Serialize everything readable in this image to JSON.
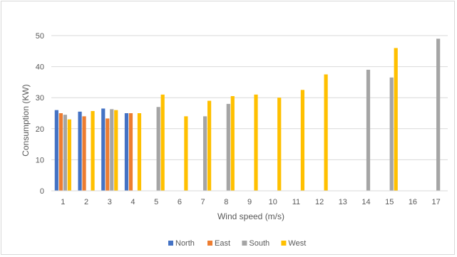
{
  "chart_data": {
    "type": "bar",
    "title": "",
    "xlabel": "Wind speed (m/s)",
    "ylabel": "Consumption (KW)",
    "ylim": [
      0,
      50
    ],
    "yticks": [
      "0",
      "10",
      "20",
      "30",
      "40",
      "50"
    ],
    "categories": [
      "1",
      "2",
      "3",
      "4",
      "5",
      "6",
      "7",
      "8",
      "9",
      "10",
      "11",
      "12",
      "13",
      "14",
      "15",
      "16",
      "17"
    ],
    "grid": true,
    "legend_position": "bottom",
    "series": [
      {
        "name": "North",
        "color": "#4472c4",
        "values": [
          26,
          25.5,
          26.5,
          25,
          null,
          null,
          null,
          null,
          null,
          null,
          null,
          null,
          null,
          null,
          null,
          null,
          null
        ]
      },
      {
        "name": "East",
        "color": "#ed7d31",
        "values": [
          25,
          24,
          23.3,
          25,
          null,
          null,
          null,
          null,
          null,
          null,
          null,
          null,
          null,
          null,
          null,
          null,
          null
        ]
      },
      {
        "name": "South",
        "color": "#a5a5a5",
        "values": [
          24.5,
          null,
          26.3,
          null,
          27,
          null,
          24,
          28,
          null,
          null,
          null,
          null,
          null,
          39,
          36.5,
          null,
          49
        ]
      },
      {
        "name": "West",
        "color": "#ffc000",
        "values": [
          23,
          25.7,
          26,
          25,
          31,
          24,
          29,
          30.5,
          31,
          30,
          32.5,
          37.5,
          null,
          null,
          46,
          null,
          null
        ]
      }
    ]
  }
}
